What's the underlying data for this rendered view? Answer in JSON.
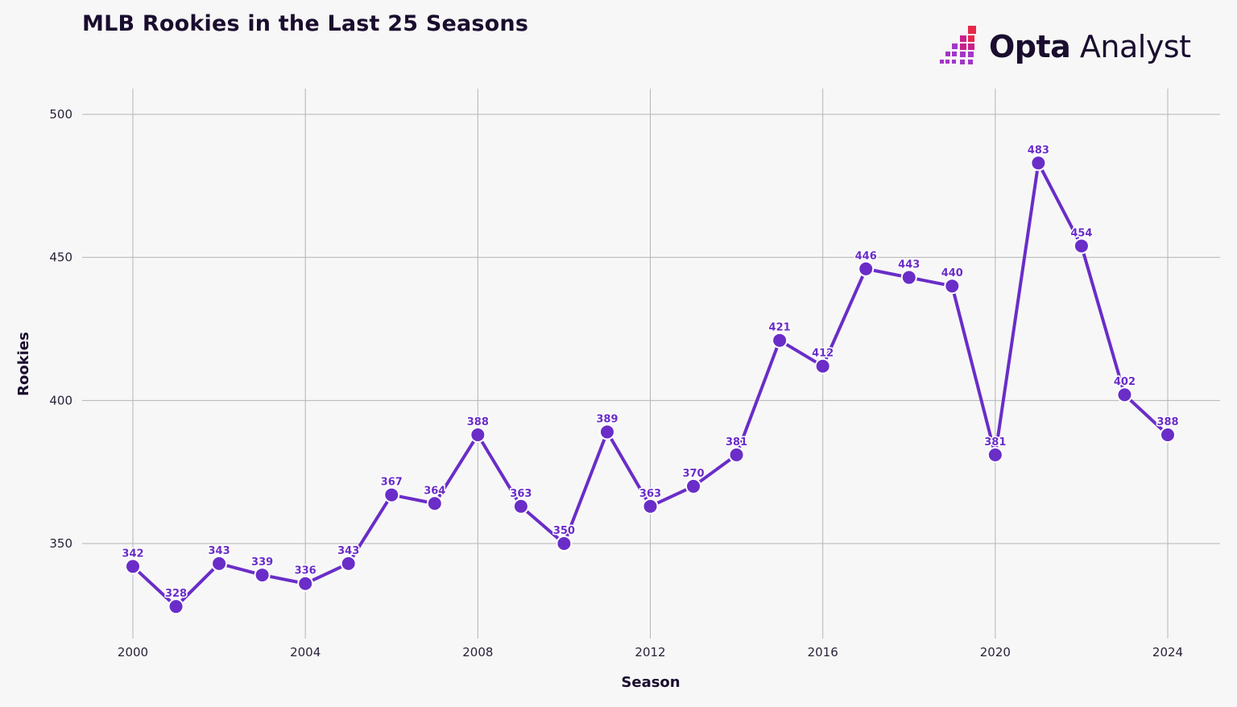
{
  "title": "MLB Rookies in the Last 25 Seasons",
  "brand": {
    "name_strong": "Opta",
    "name_light": " Analyst",
    "logo_icon": "opta-pixel-logo-icon",
    "logo_colors": [
      "#e8264a",
      "#c9208a",
      "#a236c8"
    ]
  },
  "colors": {
    "line": "#6a2dc8",
    "marker": "#6a2dc8",
    "marker_outline": "#ffffff",
    "grid": "#b5b5b5",
    "background": "#f7f7f7"
  },
  "chart_data": {
    "type": "line",
    "title": "MLB Rookies in the Last 25 Seasons",
    "xlabel": "Season",
    "ylabel": "Rookies",
    "xlim": [
      1999.2,
      2025.2
    ],
    "ylim": [
      320,
      509
    ],
    "x_ticks": [
      2000,
      2004,
      2008,
      2012,
      2016,
      2020,
      2024
    ],
    "y_ticks": [
      350,
      400,
      450,
      500
    ],
    "grid": true,
    "legend": "none",
    "x": [
      2000,
      2001,
      2002,
      2003,
      2004,
      2005,
      2006,
      2007,
      2008,
      2009,
      2010,
      2011,
      2012,
      2013,
      2014,
      2015,
      2016,
      2017,
      2018,
      2019,
      2020,
      2021,
      2022,
      2023,
      2024
    ],
    "series": [
      {
        "values": [
          342,
          328,
          343,
          339,
          336,
          343,
          367,
          364,
          388,
          363,
          350,
          389,
          363,
          370,
          381,
          421,
          412,
          446,
          443,
          440,
          381,
          483,
          454,
          402,
          388
        ]
      }
    ]
  }
}
